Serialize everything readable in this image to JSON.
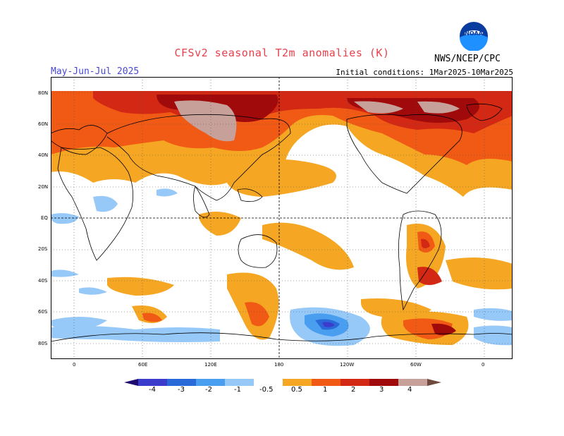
{
  "header": {
    "title": "CFSv2 seasonal T2m anomalies (K)",
    "period": "May-Jun-Jul 2025",
    "initial_conditions": "Initial conditions: 1Mar2025-10Mar2025",
    "agency": "NWS/NCEP/CPC",
    "logo_text": "NOAA"
  },
  "map": {
    "lat_labels": [
      "80N",
      "60N",
      "40N",
      "20N",
      "EQ",
      "20S",
      "40S",
      "60S",
      "80S"
    ],
    "lon_labels": [
      "0",
      "60E",
      "120E",
      "180",
      "120W",
      "60W",
      "0"
    ]
  },
  "legend": {
    "labels": [
      "-4",
      "-3",
      "-2",
      "-1",
      "-0.5",
      "0.5",
      "1",
      "2",
      "3",
      "4"
    ],
    "colors": [
      "#1e0a6e",
      "#3c3ccc",
      "#2a6ad8",
      "#4a9ef0",
      "#96c8f8",
      "#ffffff",
      "#f5a623",
      "#f05a14",
      "#d22814",
      "#a00a0a",
      "#c8a09a",
      "#6e4a3c"
    ]
  }
}
